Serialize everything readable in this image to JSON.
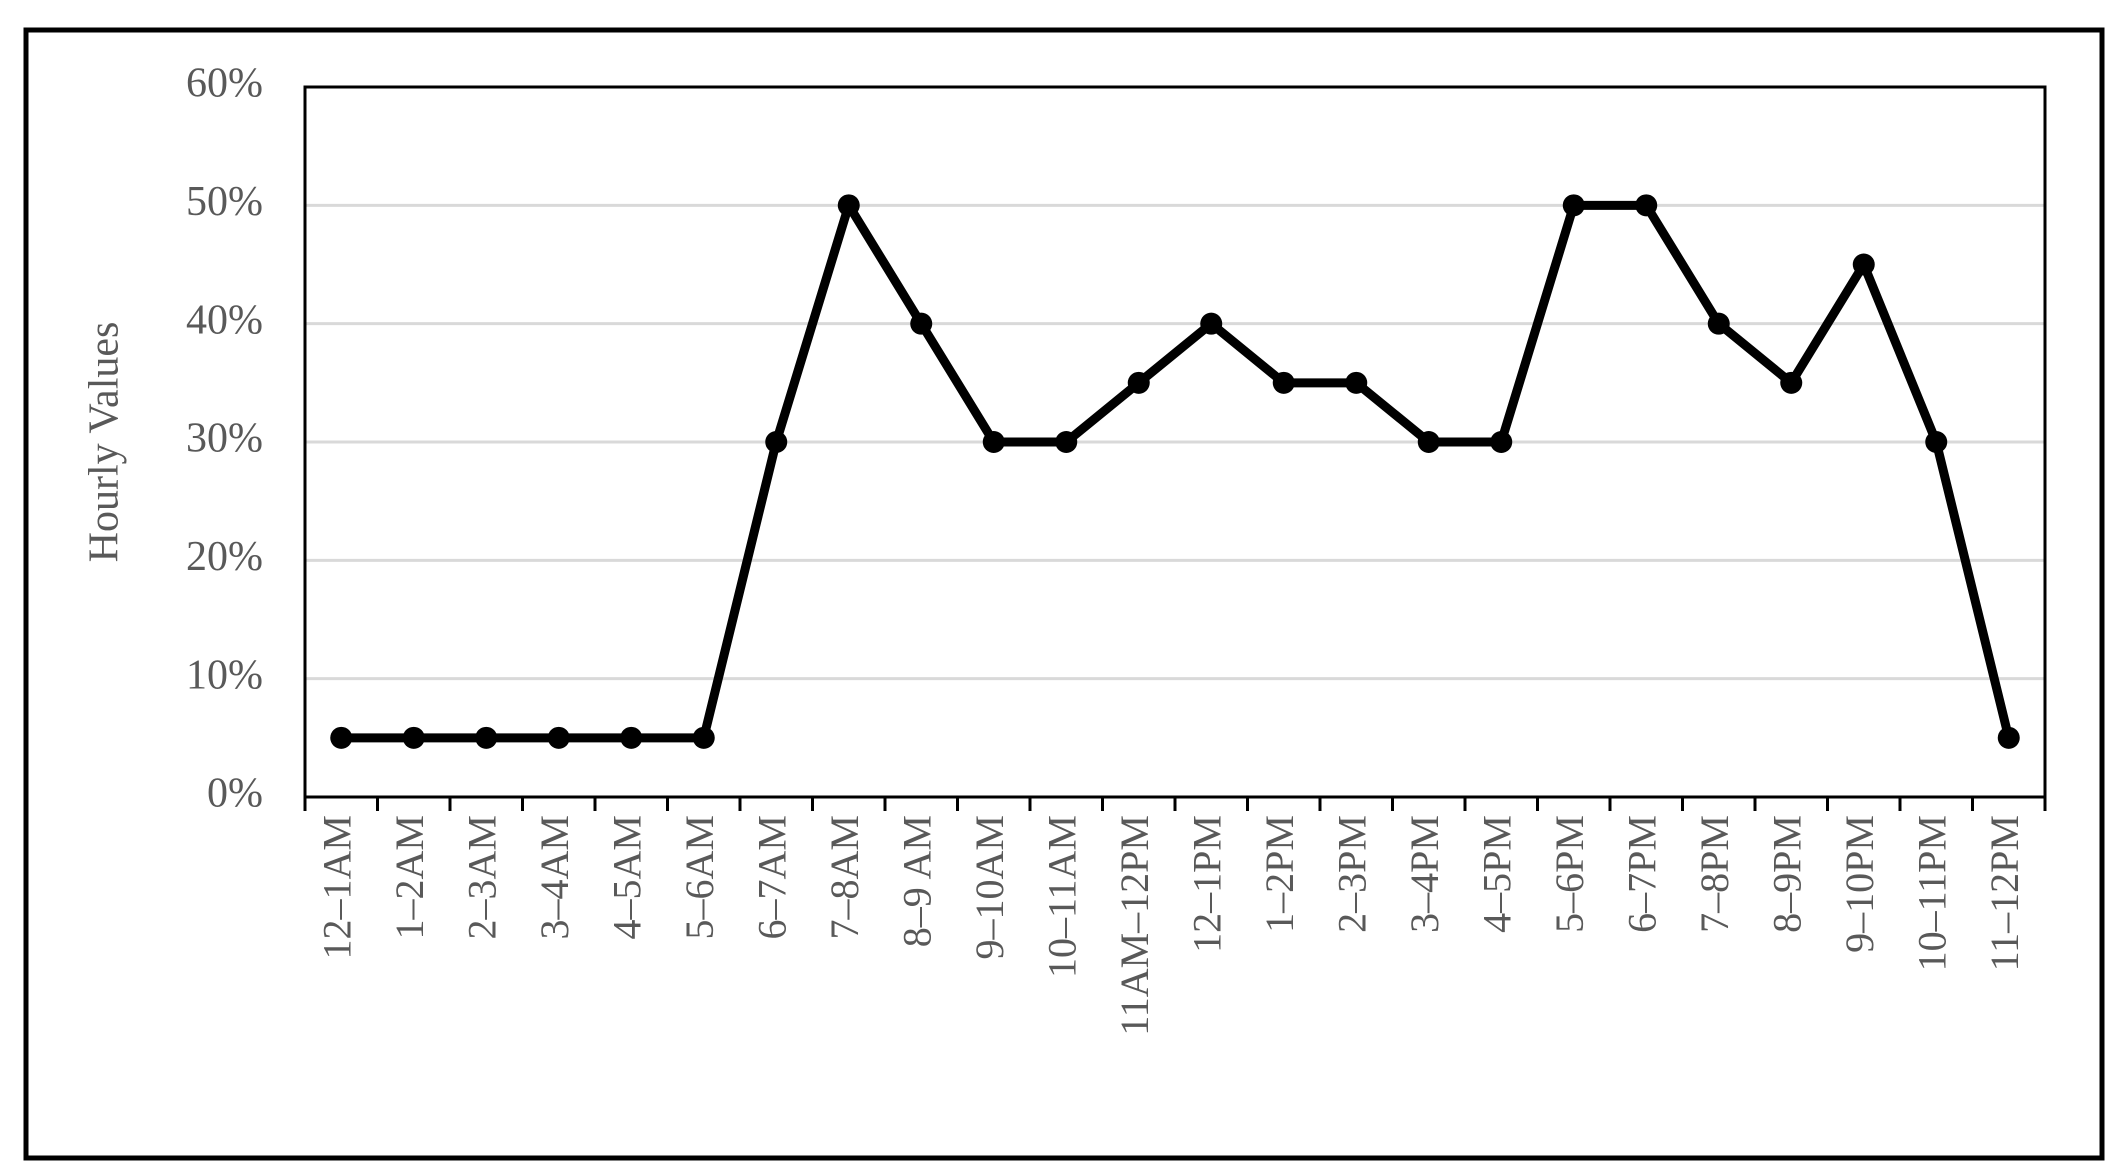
{
  "chart_data": {
    "type": "line",
    "y_label": "Hourly Values",
    "categories": [
      "12–1AM",
      "1–2AM",
      "2–3AM",
      "3–4AM",
      "4–5AM",
      "5–6AM",
      "6–7AM",
      "7–8AM",
      "8–9 AM",
      "9–10AM",
      "10–11AM",
      "11AM–12PM",
      "12–1PM",
      "1–2PM",
      "2–3PM",
      "3–4PM",
      "4–5PM",
      "5–6PM",
      "6–7PM",
      "7–8PM",
      "8–9PM",
      "9–10PM",
      "10–11PM",
      "11–12PM"
    ],
    "values": [
      5,
      5,
      5,
      5,
      5,
      5,
      30,
      50,
      40,
      30,
      30,
      35,
      40,
      35,
      35,
      30,
      30,
      50,
      50,
      40,
      35,
      45,
      30,
      5
    ],
    "color": "#000000",
    "ylim": [
      0,
      60
    ],
    "yticks": [
      {
        "value": 0,
        "label": "0%"
      },
      {
        "value": 10,
        "label": "10%"
      },
      {
        "value": 20,
        "label": "20%"
      },
      {
        "value": 30,
        "label": "30%"
      },
      {
        "value": 40,
        "label": "40%"
      },
      {
        "value": 50,
        "label": "50%"
      },
      {
        "value": 60,
        "label": "60%"
      }
    ],
    "grid": true
  }
}
